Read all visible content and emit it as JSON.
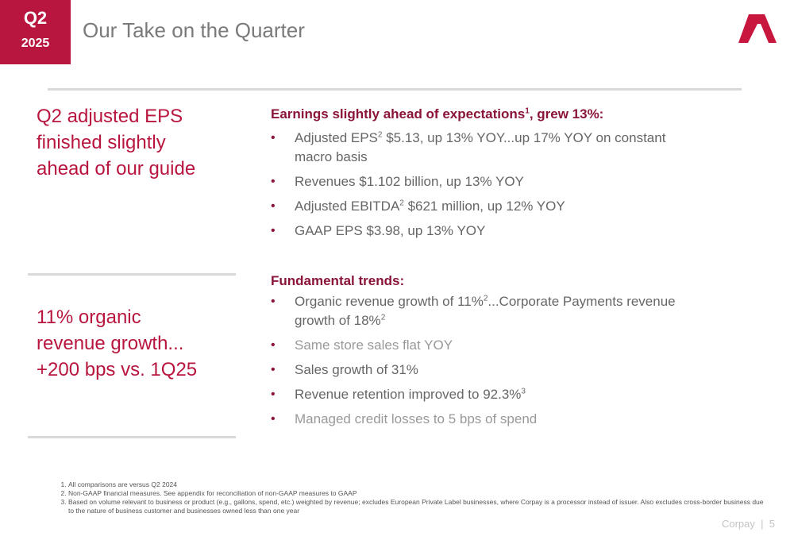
{
  "header": {
    "quarter": "Q2",
    "year": "2025",
    "title": "Our Take on the Quarter",
    "logo_icon": "corpay-chevron-logo",
    "accent_color": "#b8163f"
  },
  "sections": [
    {
      "left_heading": [
        "Q2 adjusted EPS",
        "finished slightly",
        "ahead of our guide"
      ],
      "heading_text": "Earnings slightly ahead of expectations",
      "heading_sup": "1",
      "heading_suffix": ", grew 13%:",
      "bullets": [
        {
          "pre": "Adjusted EPS",
          "sup": "2",
          "post": " $5.13, up 13% YOY...up 17% YOY on constant macro basis"
        },
        {
          "pre": "Revenues $1.102 billion, up 13% YOY",
          "sup": "",
          "post": ""
        },
        {
          "pre": "Adjusted EBITDA",
          "sup": "2",
          "post": " $621 million, up 12% YOY"
        },
        {
          "pre": "GAAP EPS $3.98, up 13% YOY",
          "sup": "",
          "post": ""
        }
      ]
    },
    {
      "left_heading": [
        "11% organic",
        "revenue growth...",
        "+200 bps vs. 1Q25"
      ],
      "heading_text": "Fundamental trends:",
      "bullets": [
        {
          "pre": "Organic revenue growth of 11%",
          "sup": "2",
          "post": "...Corporate Payments revenue growth of 18%",
          "sup2": "2"
        },
        {
          "pre": "Same store sales flat YOY",
          "sup": "",
          "post": ""
        },
        {
          "pre": "Sales growth of 31%",
          "sup": "",
          "post": ""
        },
        {
          "pre": "Revenue retention improved to 92.3%",
          "sup": "3",
          "post": ""
        },
        {
          "pre": "Managed credit losses to 5 bps of spend",
          "sup": "",
          "post": ""
        }
      ]
    }
  ],
  "footnotes": [
    "All comparisons are versus Q2 2024",
    "Non-GAAP financial measures. See appendix for reconciliation of non-GAAP measures to GAAP",
    "Based on volume relevant to business or product (e.g., gallons, spend, etc.) weighted by revenue; excludes European Private Label businesses, where Corpay is a processor instead of issuer. Also excludes cross-border business due to the nature of business customer and businesses owned less than one year"
  ],
  "footer": {
    "company": "Corpay",
    "separator": "|",
    "page_number": "5"
  }
}
